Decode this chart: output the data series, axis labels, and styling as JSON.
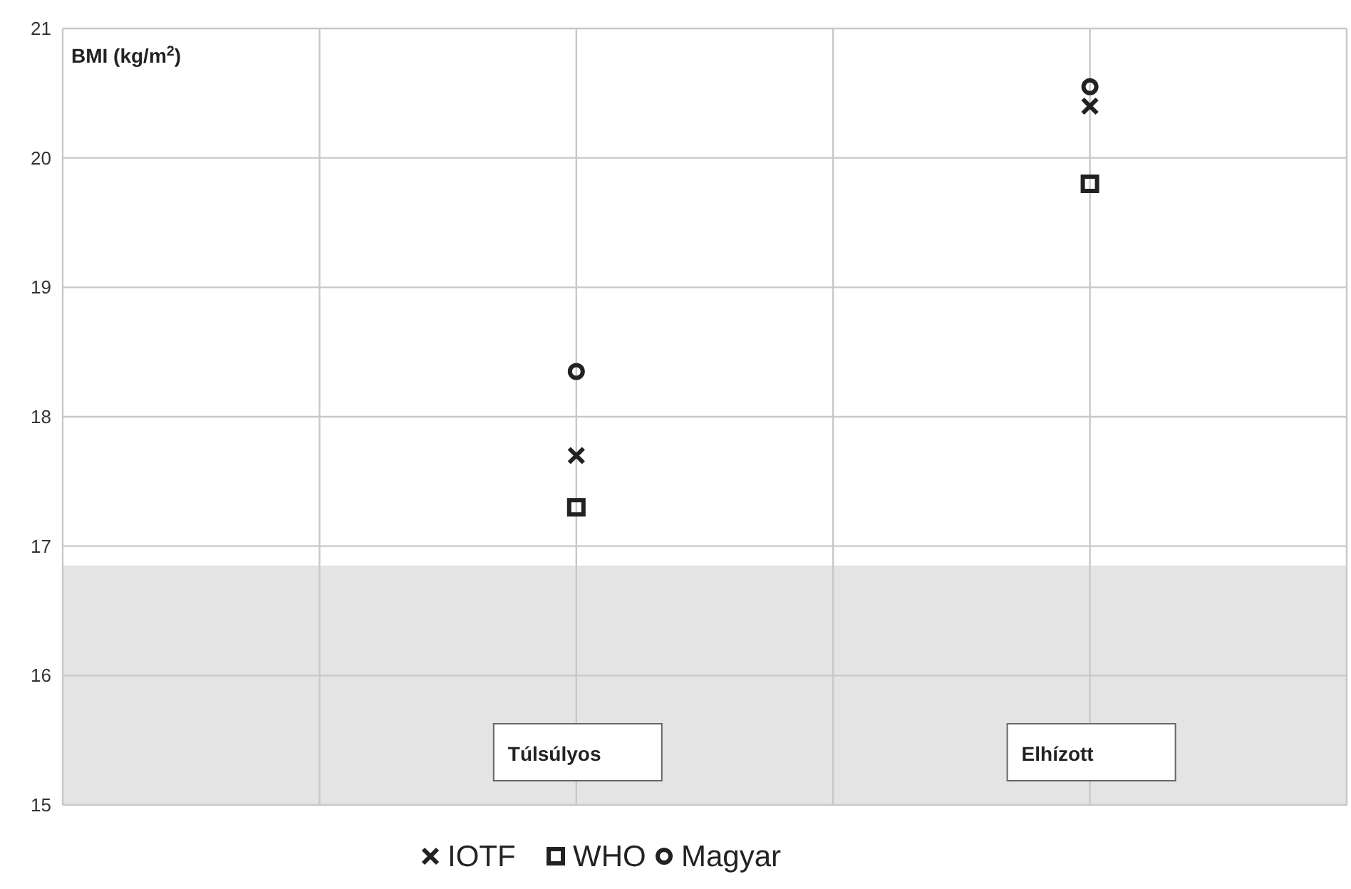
{
  "chart_data": {
    "type": "scatter",
    "ylabel": "BMI (kg/m$^{2}$)",
    "categories": [
      null,
      null
    ],
    "ylim": [
      15,
      21
    ],
    "yticks": [
      15,
      16,
      17,
      18,
      19,
      20,
      21
    ],
    "grid": true,
    "legend": "bottom",
    "series": [
      {
        "name": "IOTF",
        "color": "#222222",
        "marker": "cross",
        "values": [
          17.7,
          20.4
        ]
      },
      {
        "name": "WHO",
        "color": "#222222",
        "marker": "square",
        "values": [
          17.3,
          19.8
        ]
      },
      {
        "name": "Magyar",
        "color": "#222222",
        "marker": "circle",
        "values": [
          18.35,
          20.55
        ]
      }
    ],
    "bands": [
      {
        "axis": "y",
        "from": 15,
        "to": 16.85,
        "color": "#e4e4e4"
      }
    ],
    "annotations": [
      "Túlsúlyos",
      "Elhízott"
    ]
  }
}
